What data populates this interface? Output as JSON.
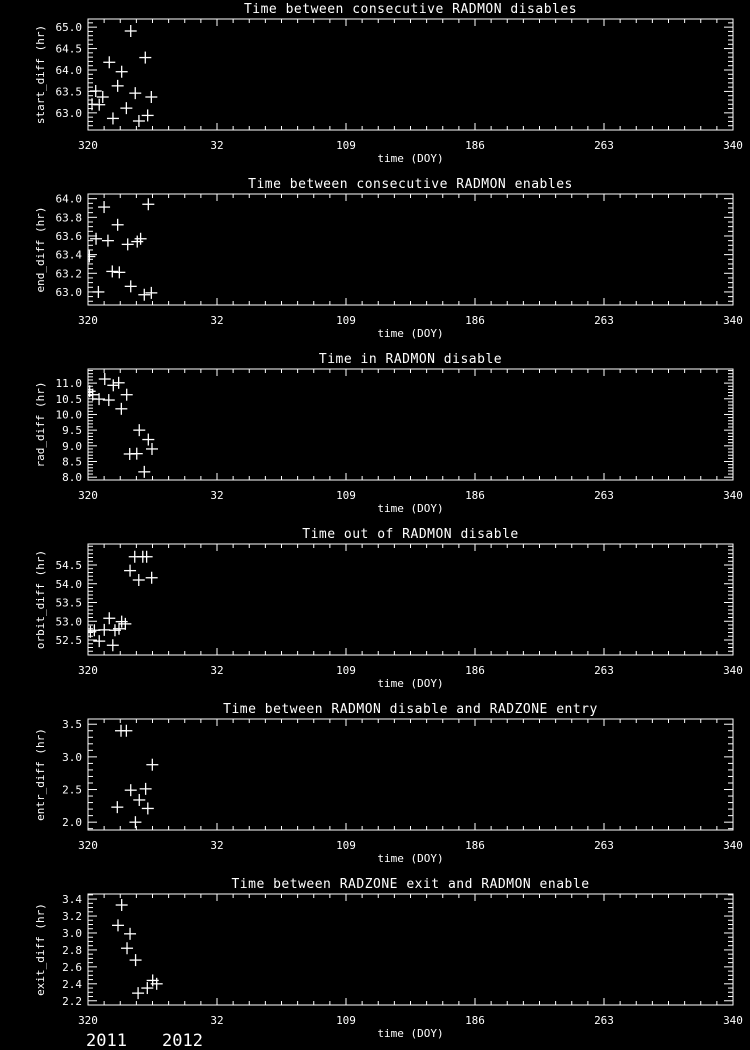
{
  "page": {
    "background": "#000000",
    "foreground": "#ffffff"
  },
  "footer": {
    "year_labels": [
      {
        "text": "2011"
      },
      {
        "text": "2012"
      }
    ]
  },
  "chart_data": [
    {
      "type": "scatter",
      "title": "Time between consecutive RADMON disables",
      "xlabel": "time (DOY)",
      "ylabel": "start_diff (hr)",
      "marker": "plus",
      "marker_color": "#ffffff",
      "axis_color": "#ffffff",
      "xlim": [
        0,
        385
      ],
      "x_major_ticks": [
        {
          "pos": 0,
          "label": "320"
        },
        {
          "pos": 77,
          "label": "32"
        },
        {
          "pos": 154,
          "label": "109"
        },
        {
          "pos": 231,
          "label": "186"
        },
        {
          "pos": 308,
          "label": "263"
        },
        {
          "pos": 385,
          "label": "340"
        }
      ],
      "x_minor_step": 9.625,
      "ylim": [
        62.6,
        65.19
      ],
      "y_major_ticks": [
        {
          "val": 65.0,
          "label": "65.0"
        },
        {
          "val": 64.5,
          "label": "64.5"
        },
        {
          "val": 64.0,
          "label": "64.0"
        },
        {
          "val": 63.5,
          "label": "63.5"
        },
        {
          "val": 63.0,
          "label": "63.0"
        }
      ],
      "y_minor_step": 0.1,
      "points": [
        [
          2.4,
          63.2
        ],
        [
          4.6,
          63.51
        ],
        [
          6.7,
          63.19
        ],
        [
          8.8,
          63.37
        ],
        [
          12.7,
          64.18
        ],
        [
          14.9,
          62.87
        ],
        [
          17.7,
          63.63
        ],
        [
          20.1,
          63.96
        ],
        [
          22.9,
          63.11
        ],
        [
          25.5,
          64.91
        ],
        [
          28.2,
          63.46
        ],
        [
          30.4,
          62.81
        ],
        [
          34.2,
          64.29
        ],
        [
          35.6,
          62.94
        ],
        [
          37.8,
          63.37
        ]
      ]
    },
    {
      "type": "scatter",
      "title": "Time between consecutive RADMON enables",
      "xlabel": "time (DOY)",
      "ylabel": "end_diff (hr)",
      "marker": "plus",
      "marker_color": "#ffffff",
      "axis_color": "#ffffff",
      "xlim": [
        0,
        385
      ],
      "x_major_ticks": [
        {
          "pos": 0,
          "label": "320"
        },
        {
          "pos": 77,
          "label": "32"
        },
        {
          "pos": 154,
          "label": "109"
        },
        {
          "pos": 231,
          "label": "186"
        },
        {
          "pos": 308,
          "label": "263"
        },
        {
          "pos": 385,
          "label": "340"
        }
      ],
      "x_minor_step": 9.625,
      "ylim": [
        62.86,
        64.05
      ],
      "y_major_ticks": [
        {
          "val": 64.0,
          "label": "64.0"
        },
        {
          "val": 63.8,
          "label": "63.8"
        },
        {
          "val": 63.6,
          "label": "63.6"
        },
        {
          "val": 63.4,
          "label": "63.4"
        },
        {
          "val": 63.2,
          "label": "63.2"
        },
        {
          "val": 63.0,
          "label": "63.0"
        }
      ],
      "y_minor_step": 0.05,
      "points": [
        [
          0.8,
          63.38
        ],
        [
          4.8,
          63.57
        ],
        [
          6.2,
          63.0
        ],
        [
          9.6,
          63.91
        ],
        [
          11.9,
          63.55
        ],
        [
          14.5,
          63.22
        ],
        [
          17.7,
          63.72
        ],
        [
          18.7,
          63.21
        ],
        [
          23.7,
          63.51
        ],
        [
          25.5,
          63.06
        ],
        [
          29.4,
          63.54
        ],
        [
          31.4,
          63.57
        ],
        [
          33.6,
          62.97
        ],
        [
          36.0,
          63.94
        ],
        [
          37.8,
          62.99
        ]
      ]
    },
    {
      "type": "scatter",
      "title": "Time in RADMON disable",
      "xlabel": "time (DOY)",
      "ylabel": "rad_diff (hr)",
      "marker": "plus",
      "marker_color": "#ffffff",
      "axis_color": "#ffffff",
      "xlim": [
        0,
        385
      ],
      "x_major_ticks": [
        {
          "pos": 0,
          "label": "320"
        },
        {
          "pos": 77,
          "label": "32"
        },
        {
          "pos": 154,
          "label": "109"
        },
        {
          "pos": 231,
          "label": "186"
        },
        {
          "pos": 308,
          "label": "263"
        },
        {
          "pos": 385,
          "label": "340"
        }
      ],
      "x_minor_step": 9.625,
      "ylim": [
        7.91,
        11.45
      ],
      "y_major_ticks": [
        {
          "val": 11.0,
          "label": "11.0"
        },
        {
          "val": 10.5,
          "label": "10.5"
        },
        {
          "val": 10.0,
          "label": "10.0"
        },
        {
          "val": 9.5,
          "label": "9.5"
        },
        {
          "val": 9.0,
          "label": "9.0"
        },
        {
          "val": 8.5,
          "label": "8.5"
        },
        {
          "val": 8.0,
          "label": "8.0"
        }
      ],
      "y_minor_step": 0.1,
      "points": [
        [
          1.0,
          10.74
        ],
        [
          2.8,
          10.63
        ],
        [
          6.6,
          10.49
        ],
        [
          10.0,
          11.13
        ],
        [
          12.4,
          10.46
        ],
        [
          15.1,
          10.93
        ],
        [
          18.3,
          11.01
        ],
        [
          19.9,
          10.18
        ],
        [
          23.1,
          10.63
        ],
        [
          24.9,
          8.74
        ],
        [
          29.1,
          8.75
        ],
        [
          30.6,
          9.5
        ],
        [
          33.6,
          8.17
        ],
        [
          36.0,
          9.2
        ],
        [
          38.2,
          8.9
        ]
      ]
    },
    {
      "type": "scatter",
      "title": "Time out of RADMON disable",
      "xlabel": "time (DOY)",
      "ylabel": "orbit_diff (hr)",
      "marker": "plus",
      "marker_color": "#ffffff",
      "axis_color": "#ffffff",
      "xlim": [
        0,
        385
      ],
      "x_major_ticks": [
        {
          "pos": 0,
          "label": "320"
        },
        {
          "pos": 77,
          "label": "32"
        },
        {
          "pos": 154,
          "label": "109"
        },
        {
          "pos": 231,
          "label": "186"
        },
        {
          "pos": 308,
          "label": "263"
        },
        {
          "pos": 385,
          "label": "340"
        }
      ],
      "x_minor_step": 9.625,
      "ylim": [
        52.1,
        55.06
      ],
      "y_major_ticks": [
        {
          "val": 54.5,
          "label": "54.5"
        },
        {
          "val": 54.0,
          "label": "54.0"
        },
        {
          "val": 53.5,
          "label": "53.5"
        },
        {
          "val": 53.0,
          "label": "53.0"
        },
        {
          "val": 52.5,
          "label": "52.5"
        }
      ],
      "y_minor_step": 0.1,
      "points": [
        [
          1.4,
          52.72
        ],
        [
          3.8,
          52.76
        ],
        [
          6.7,
          52.47
        ],
        [
          9.7,
          52.77
        ],
        [
          12.7,
          53.08
        ],
        [
          14.8,
          52.36
        ],
        [
          16.1,
          52.76
        ],
        [
          18.5,
          52.8
        ],
        [
          20.1,
          52.99
        ],
        [
          22.3,
          52.93
        ],
        [
          25.1,
          54.35
        ],
        [
          27.9,
          54.72
        ],
        [
          30.3,
          54.1
        ],
        [
          32.7,
          54.72
        ],
        [
          35.0,
          54.72
        ],
        [
          38.0,
          54.16
        ]
      ]
    },
    {
      "type": "scatter",
      "title": "Time between RADMON disable and RADZONE entry",
      "xlabel": "time (DOY)",
      "ylabel": "entr_diff (hr)",
      "marker": "plus",
      "marker_color": "#ffffff",
      "axis_color": "#ffffff",
      "xlim": [
        0,
        385
      ],
      "x_major_ticks": [
        {
          "pos": 0,
          "label": "320"
        },
        {
          "pos": 77,
          "label": "32"
        },
        {
          "pos": 154,
          "label": "109"
        },
        {
          "pos": 231,
          "label": "186"
        },
        {
          "pos": 308,
          "label": "263"
        },
        {
          "pos": 385,
          "label": "340"
        }
      ],
      "x_minor_step": 9.625,
      "ylim": [
        1.88,
        3.58
      ],
      "y_major_ticks": [
        {
          "val": 3.5,
          "label": "3.5"
        },
        {
          "val": 3.0,
          "label": "3.0"
        },
        {
          "val": 2.5,
          "label": "2.5"
        },
        {
          "val": 2.0,
          "label": "2.0"
        }
      ],
      "y_minor_step": 0.1,
      "points": [
        [
          17.5,
          2.23
        ],
        [
          19.7,
          3.4
        ],
        [
          22.9,
          3.4
        ],
        [
          25.5,
          2.49
        ],
        [
          28.3,
          2.0
        ],
        [
          30.6,
          2.34
        ],
        [
          34.4,
          2.51
        ],
        [
          35.7,
          2.21
        ],
        [
          38.4,
          2.88
        ]
      ]
    },
    {
      "type": "scatter",
      "title": "Time between RADZONE exit and RADMON enable",
      "xlabel": "time (DOY)",
      "ylabel": "exit_diff (hr)",
      "marker": "plus",
      "marker_color": "#ffffff",
      "axis_color": "#ffffff",
      "xlim": [
        0,
        385
      ],
      "x_major_ticks": [
        {
          "pos": 0,
          "label": "320"
        },
        {
          "pos": 77,
          "label": "32"
        },
        {
          "pos": 154,
          "label": "109"
        },
        {
          "pos": 231,
          "label": "186"
        },
        {
          "pos": 308,
          "label": "263"
        },
        {
          "pos": 385,
          "label": "340"
        }
      ],
      "x_minor_step": 9.625,
      "ylim": [
        2.15,
        3.46
      ],
      "y_major_ticks": [
        {
          "val": 3.4,
          "label": "3.4"
        },
        {
          "val": 3.2,
          "label": "3.2"
        },
        {
          "val": 3.0,
          "label": "3.0"
        },
        {
          "val": 2.8,
          "label": "2.8"
        },
        {
          "val": 2.6,
          "label": "2.6"
        },
        {
          "val": 2.4,
          "label": "2.4"
        },
        {
          "val": 2.2,
          "label": "2.2"
        }
      ],
      "y_minor_step": 0.05,
      "points": [
        [
          17.9,
          3.09
        ],
        [
          20.1,
          3.33
        ],
        [
          23.3,
          2.82
        ],
        [
          25.1,
          2.99
        ],
        [
          28.4,
          2.68
        ],
        [
          29.9,
          2.29
        ],
        [
          35.4,
          2.35
        ],
        [
          38.6,
          2.44
        ],
        [
          41.0,
          2.4
        ]
      ]
    }
  ]
}
